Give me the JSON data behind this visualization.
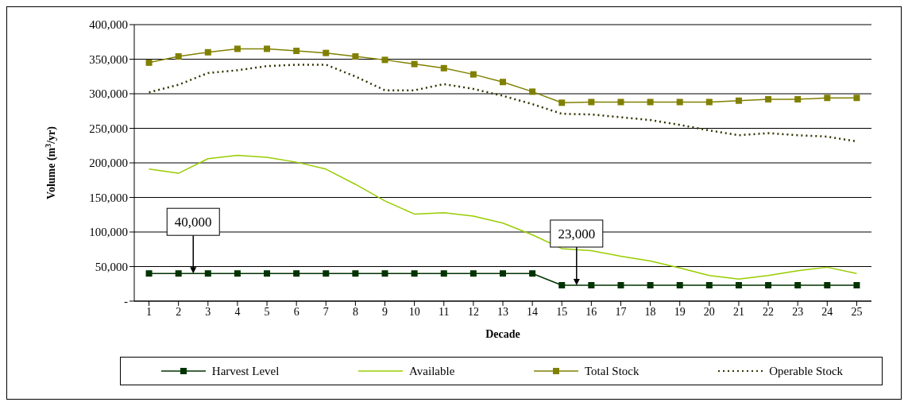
{
  "chart_data": {
    "type": "line",
    "xlabel": "Decade",
    "ylabel": "Volume (m$^{3}$/yr)",
    "x": [
      1,
      2,
      3,
      4,
      5,
      6,
      7,
      8,
      9,
      10,
      11,
      12,
      13,
      14,
      15,
      16,
      17,
      18,
      19,
      20,
      21,
      22,
      23,
      24,
      25
    ],
    "xlim": [
      0.5,
      25.5
    ],
    "xticks": [
      1,
      2,
      3,
      4,
      5,
      6,
      7,
      8,
      9,
      10,
      11,
      12,
      13,
      14,
      15,
      16,
      17,
      18,
      19,
      20,
      21,
      22,
      23,
      24,
      25
    ],
    "ylim": [
      0,
      400000
    ],
    "yticks": [
      {
        "value": 0,
        "label": "-"
      },
      {
        "value": 50000,
        "label": "50,000"
      },
      {
        "value": 100000,
        "label": "100,000"
      },
      {
        "value": 150000,
        "label": "150,000"
      },
      {
        "value": 200000,
        "label": "200,000"
      },
      {
        "value": 250000,
        "label": "250,000"
      },
      {
        "value": 300000,
        "label": "300,000"
      },
      {
        "value": 350000,
        "label": "350,000"
      },
      {
        "value": 400000,
        "label": "400,000"
      }
    ],
    "grid": "y",
    "legend": "bottom",
    "series": [
      {
        "name": "Harvest Level",
        "color": "#003300",
        "marker": "square",
        "line_style": "solid",
        "values": [
          40000,
          40000,
          40000,
          40000,
          40000,
          40000,
          40000,
          40000,
          40000,
          40000,
          40000,
          40000,
          40000,
          40000,
          23000,
          23000,
          23000,
          23000,
          23000,
          23000,
          23000,
          23000,
          23000,
          23000,
          23000
        ]
      },
      {
        "name": "Available",
        "color": "#99cc00",
        "marker": "none",
        "line_style": "solid",
        "values": [
          191000,
          185000,
          206000,
          211000,
          208000,
          201000,
          191000,
          169000,
          145000,
          126000,
          128000,
          123000,
          113000,
          96000,
          76000,
          73000,
          65000,
          58000,
          48000,
          37000,
          32000,
          37000,
          44000,
          49000,
          40000
        ]
      },
      {
        "name": "Total Stock",
        "color": "#808000",
        "marker": "square",
        "line_style": "solid",
        "values": [
          345000,
          354000,
          360000,
          365000,
          365000,
          362000,
          359000,
          354000,
          349000,
          343000,
          337000,
          328000,
          317000,
          303000,
          287000,
          288000,
          288000,
          288000,
          288000,
          288000,
          290000,
          292000,
          292000,
          294000,
          294000
        ]
      },
      {
        "name": "Operable Stock",
        "color": "#333300",
        "marker": "none",
        "line_style": "dotted",
        "values": [
          302000,
          313000,
          330000,
          334000,
          340000,
          342000,
          342000,
          325000,
          305000,
          305000,
          314000,
          307000,
          297000,
          285000,
          271000,
          270000,
          266000,
          262000,
          255000,
          247000,
          240000,
          243000,
          240000,
          238000,
          231000
        ]
      }
    ],
    "annotations": [
      {
        "text": "40,000",
        "x": 2.5,
        "y": 40000
      },
      {
        "text": "23,000",
        "x": 15.5,
        "y": 23000
      }
    ]
  }
}
